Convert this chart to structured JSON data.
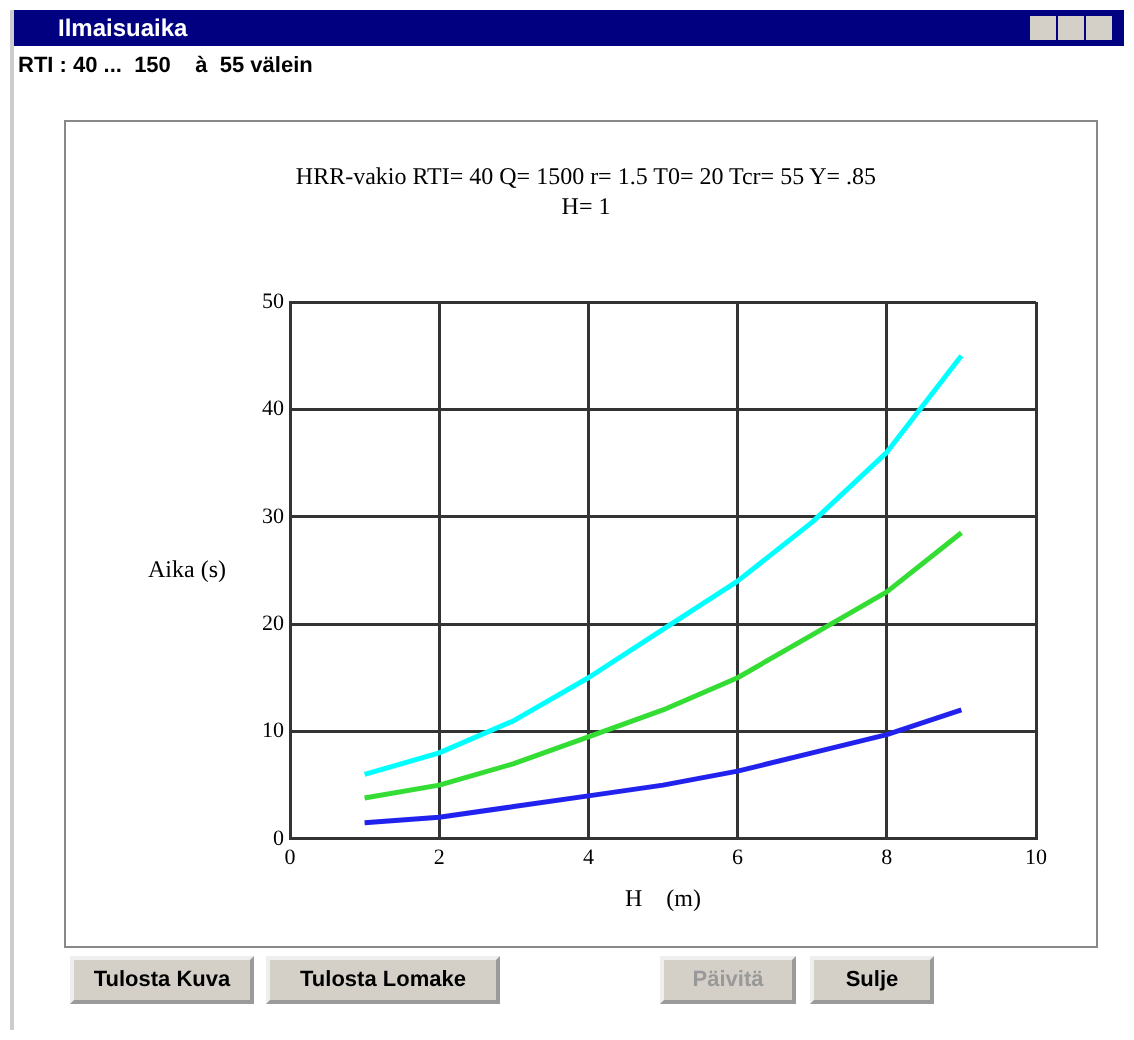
{
  "chart_data": {
    "type": "line",
    "title": "HRR-vakio RTI= 40 Q= 1500 r= 1.5 T0= 20 Tcr= 55 Y= .85 H= 1",
    "xlabel": "H    (m)",
    "ylabel": "Aika (s)",
    "annotations": [
      "Ilmaisuaika",
      "RTI : 40 ...  150    à  55 välein",
      "Tulosta Kuva",
      "Tulosta Lomake",
      "Päivitä",
      "Sulje"
    ],
    "x": [
      1,
      2,
      3,
      4,
      5,
      6,
      7,
      8,
      9
    ],
    "series": [
      {
        "color": "#00ffff",
        "values": [
          6,
          8,
          11,
          15,
          19.5,
          24,
          29.5,
          36,
          45
        ]
      },
      {
        "color": "#33dd33",
        "values": [
          3.8,
          5,
          7,
          9.5,
          12,
          15,
          19,
          23,
          28.5
        ]
      },
      {
        "color": "#2222ee",
        "values": [
          1.5,
          2,
          3,
          4,
          5,
          6.3,
          8,
          9.7,
          12
        ]
      }
    ],
    "xlim": [
      0,
      10
    ],
    "xticks": [
      0,
      2,
      4,
      6,
      8,
      10
    ],
    "ylim": [
      0,
      50
    ],
    "yticks": [
      0,
      10,
      20,
      30,
      40,
      50
    ],
    "grid": true,
    "marker": "none",
    "line_style": "solid",
    "legend": false
  }
}
